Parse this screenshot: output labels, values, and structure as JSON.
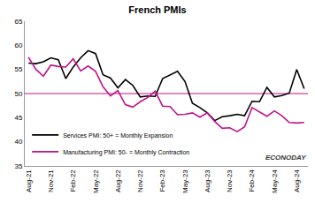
{
  "chart_data": {
    "type": "line",
    "title": "French PMIs",
    "source": "ECONODAY",
    "categories": [
      "Aug-21",
      null,
      null,
      "Nov-21",
      null,
      null,
      "Feb-22",
      null,
      null,
      "May-22",
      null,
      null,
      "Aug-22",
      null,
      null,
      "Nov-22",
      null,
      null,
      "Feb-23",
      null,
      null,
      "May-23",
      null,
      null,
      "Aug-23",
      null,
      null,
      "Nov-23",
      null,
      null,
      "Feb-24",
      null,
      null,
      "May-24",
      null,
      null,
      "Aug-24",
      null
    ],
    "series": [
      {
        "name": "Services PMI: 50+ = Monthly Expansion",
        "color": "#000000",
        "values": [
          56.3,
          56.2,
          56.6,
          57.4,
          57.0,
          53.1,
          55.5,
          57.4,
          58.9,
          58.3,
          53.9,
          53.2,
          51.2,
          52.9,
          51.7,
          49.3,
          49.5,
          49.4,
          53.1,
          53.9,
          54.6,
          52.5,
          48.0,
          47.1,
          46.0,
          44.4,
          45.2,
          45.4,
          45.7,
          45.4,
          48.4,
          48.3,
          51.3,
          49.3,
          49.6,
          50.1,
          55.0,
          51.0
        ]
      },
      {
        "name": "Manufacturing PMI: 50- = Monthly Contraction",
        "color": "#c0128c",
        "values": [
          57.5,
          55.0,
          53.6,
          55.9,
          55.6,
          55.5,
          57.2,
          54.7,
          55.7,
          54.6,
          51.4,
          49.5,
          50.6,
          47.7,
          47.2,
          48.3,
          49.2,
          50.5,
          47.4,
          47.3,
          45.6,
          45.7,
          46.0,
          45.1,
          46.0,
          44.2,
          42.8,
          42.9,
          42.1,
          43.1,
          47.1,
          46.2,
          45.3,
          46.4,
          45.4,
          44.0,
          43.9,
          44.0
        ]
      }
    ],
    "reference_line": 50,
    "ylim": [
      35,
      65
    ],
    "yticks": [
      35,
      40,
      45,
      50,
      55,
      60,
      65
    ],
    "grid": false,
    "legend": "lower left"
  }
}
